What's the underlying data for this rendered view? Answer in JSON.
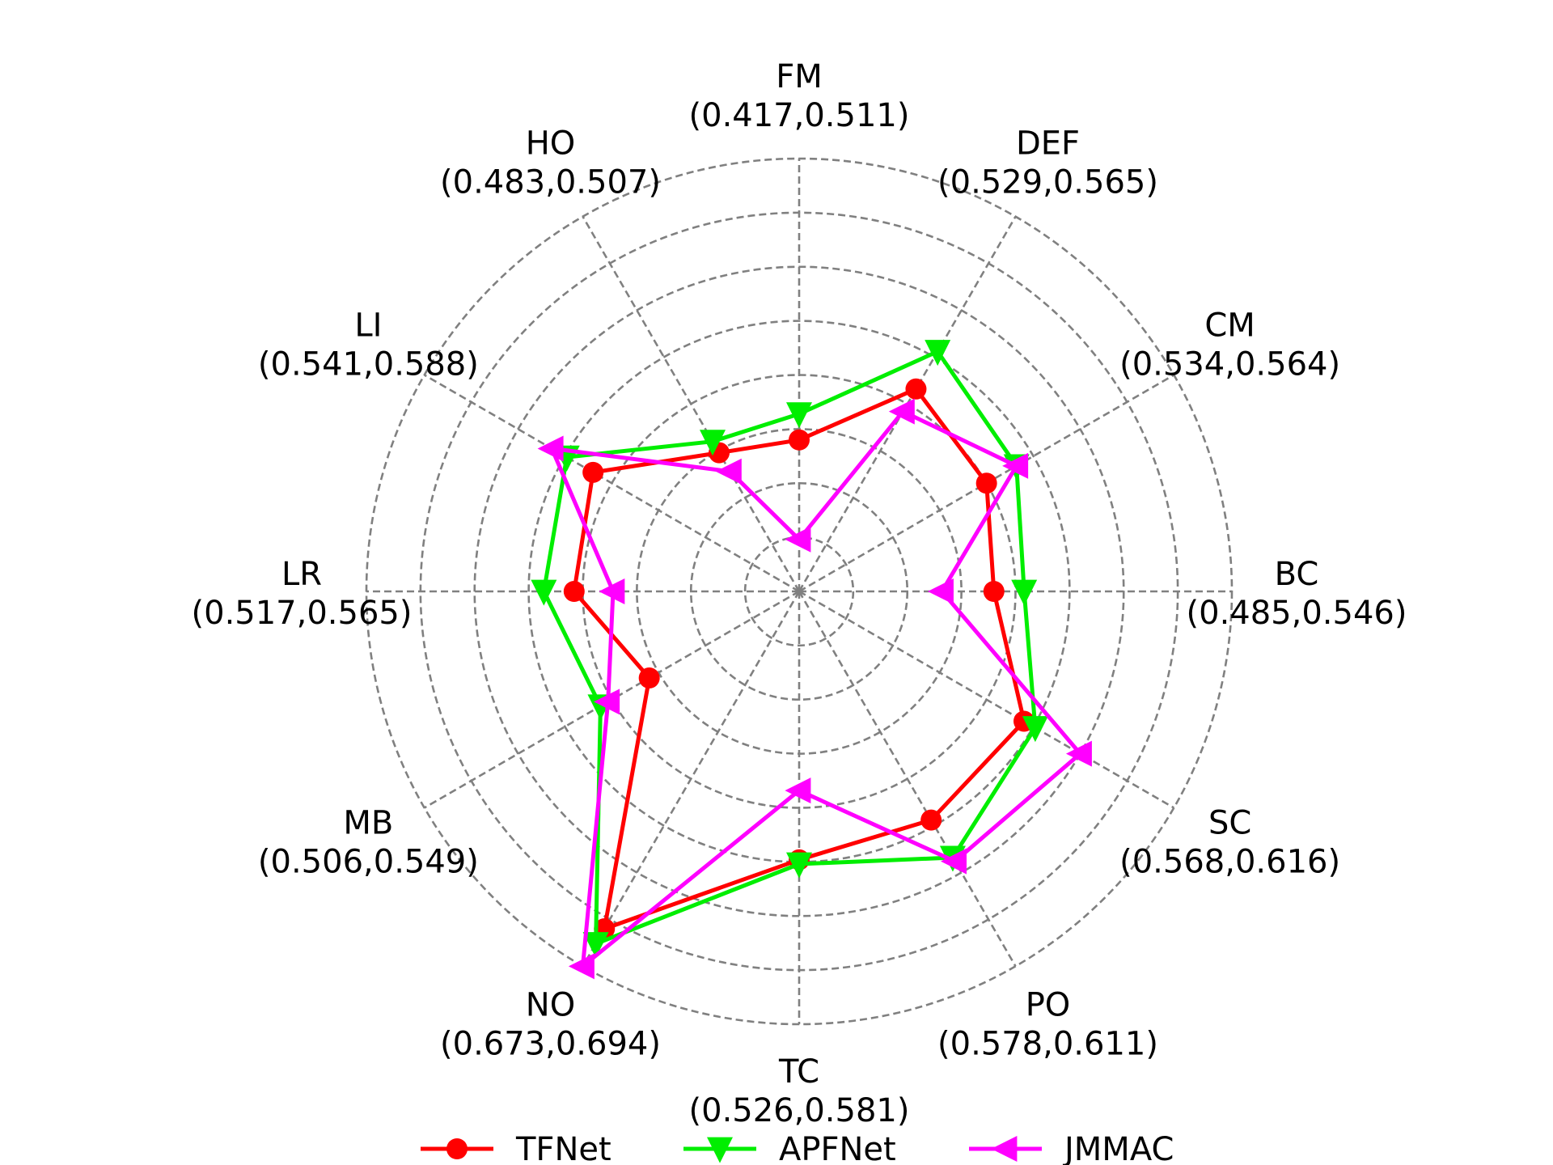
{
  "chart_data": {
    "type": "radar",
    "title": "",
    "axes": [
      {
        "name": "FM",
        "range": "(0.417,0.511)"
      },
      {
        "name": "DEF",
        "range": "(0.529,0.565)"
      },
      {
        "name": "CM",
        "range": "(0.534,0.564)"
      },
      {
        "name": "BC",
        "range": "(0.485,0.546)"
      },
      {
        "name": "SC",
        "range": "(0.568,0.616)"
      },
      {
        "name": "PO",
        "range": "(0.578,0.611)"
      },
      {
        "name": "TC",
        "range": "(0.526,0.581)"
      },
      {
        "name": "NO",
        "range": "(0.673,0.694)"
      },
      {
        "name": "MB",
        "range": "(0.506,0.549)"
      },
      {
        "name": "LR",
        "range": "(0.517,0.565)"
      },
      {
        "name": "LI",
        "range": "(0.541,0.588)"
      },
      {
        "name": "HO",
        "range": "(0.483,0.507)"
      }
    ],
    "radial_range": [
      0,
      1
    ],
    "grid": true,
    "grid_style": "dashed",
    "legend": "bottom-center",
    "series": [
      {
        "name": "TFNet",
        "color": "#ff0000",
        "marker": "circle",
        "values": [
          0.35,
          0.54,
          0.5,
          0.45,
          0.6,
          0.61,
          0.62,
          0.9,
          0.4,
          0.52,
          0.55,
          0.37
        ]
      },
      {
        "name": "APFNet",
        "color": "#00ee00",
        "marker": "triangle-down",
        "values": [
          0.41,
          0.64,
          0.58,
          0.52,
          0.63,
          0.71,
          0.63,
          0.94,
          0.53,
          0.59,
          0.62,
          0.4
        ]
      },
      {
        "name": "JMMAC",
        "color": "#ff00ff",
        "marker": "triangle-left",
        "values": [
          0.12,
          0.48,
          0.58,
          0.33,
          0.75,
          0.72,
          0.46,
          1.0,
          0.51,
          0.43,
          0.66,
          0.32
        ]
      }
    ]
  }
}
